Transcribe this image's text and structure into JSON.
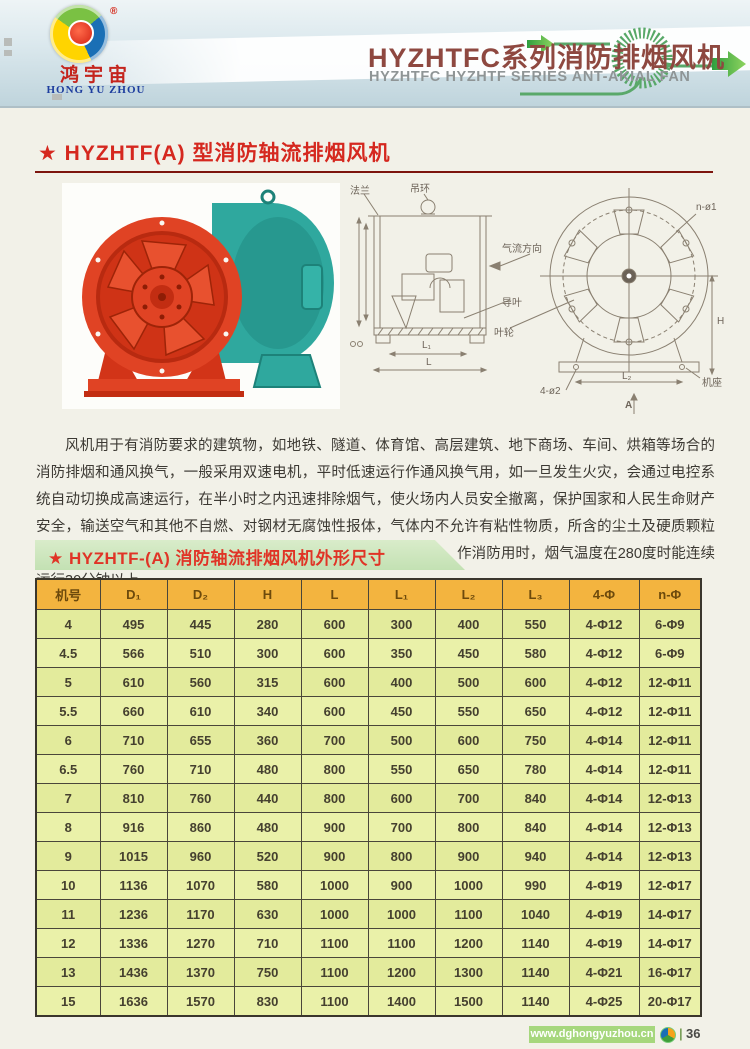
{
  "header": {
    "logo_cn": "鸿宇宙",
    "logo_en": "HONG YU ZHOU",
    "reg_mark": "®",
    "title": "HYZHTFC系列消防排烟风机",
    "subtitle": "HYZHTFC HYZHTF SERIES ANT-AKIAL FAN"
  },
  "section": {
    "title": "★ HYZHTF(A) 型消防轴流排烟风机"
  },
  "drawing": {
    "flange": "法兰",
    "lifting_ring": "吊环",
    "airflow": "气流方向",
    "guide_vane": "导叶",
    "impeller": "叶轮",
    "machine_base": "机座",
    "holes_base": "4-ø2",
    "holes_flange": "n-ø1",
    "dim_a": "A",
    "dim_h": "H",
    "dim_l": "L",
    "dim_l1": "L₁",
    "dim_l2": "L₂"
  },
  "description": "风机用于有消防要求的建筑物，如地铁、隧道、体育馆、高层建筑、地下商场、车间、烘箱等场合的消防排烟和通风换气，一般采用双速电机，平时低速运行作通风换气用，如一旦发生火灾，会通过电控系统自动切换成高速运行，在半小时之内迅速排除烟气，使火场内人员安全撤离，保护国家和人民生命财产安全，输送空气和其他不自燃、对钢材无腐蚀性报体，气体内不允许有粘性物质，所含的尘土及硬质颗粒物不大于150mg/m3，作通风换气用时进气气温度不得超过80度，作消防用时，烟气温度在280度时能连续运行30分钟以上。",
  "table": {
    "title": "★ HYZHTF-(A) 消防轴流排烟风机外形尺寸",
    "headers": [
      "机号",
      "D₁",
      "D₂",
      "H",
      "L",
      "L₁",
      "L₂",
      "L₃",
      "4-Φ",
      "n-Φ"
    ],
    "rows": [
      [
        "4",
        "495",
        "445",
        "280",
        "600",
        "300",
        "400",
        "550",
        "4-Φ12",
        "6-Φ9"
      ],
      [
        "4.5",
        "566",
        "510",
        "300",
        "600",
        "350",
        "450",
        "580",
        "4-Φ12",
        "6-Φ9"
      ],
      [
        "5",
        "610",
        "560",
        "315",
        "600",
        "400",
        "500",
        "600",
        "4-Φ12",
        "12-Φ11"
      ],
      [
        "5.5",
        "660",
        "610",
        "340",
        "600",
        "450",
        "550",
        "650",
        "4-Φ12",
        "12-Φ11"
      ],
      [
        "6",
        "710",
        "655",
        "360",
        "700",
        "500",
        "600",
        "750",
        "4-Φ14",
        "12-Φ11"
      ],
      [
        "6.5",
        "760",
        "710",
        "480",
        "800",
        "550",
        "650",
        "780",
        "4-Φ14",
        "12-Φ11"
      ],
      [
        "7",
        "810",
        "760",
        "440",
        "800",
        "600",
        "700",
        "840",
        "4-Φ14",
        "12-Φ13"
      ],
      [
        "8",
        "916",
        "860",
        "480",
        "900",
        "700",
        "800",
        "840",
        "4-Φ14",
        "12-Φ13"
      ],
      [
        "9",
        "1015",
        "960",
        "520",
        "900",
        "800",
        "900",
        "940",
        "4-Φ14",
        "12-Φ13"
      ],
      [
        "10",
        "1136",
        "1070",
        "580",
        "1000",
        "900",
        "1000",
        "990",
        "4-Φ19",
        "12-Φ17"
      ],
      [
        "11",
        "1236",
        "1170",
        "630",
        "1000",
        "1000",
        "1100",
        "1040",
        "4-Φ19",
        "14-Φ17"
      ],
      [
        "12",
        "1336",
        "1270",
        "710",
        "1100",
        "1100",
        "1200",
        "1140",
        "4-Φ19",
        "14-Φ17"
      ],
      [
        "13",
        "1436",
        "1370",
        "750",
        "1100",
        "1200",
        "1300",
        "1140",
        "4-Φ21",
        "16-Φ17"
      ],
      [
        "15",
        "1636",
        "1570",
        "830",
        "1100",
        "1400",
        "1500",
        "1140",
        "4-Φ25",
        "20-Φ17"
      ]
    ]
  },
  "footer": {
    "website": "www.dghongyuzhou.cn",
    "divider": "|",
    "page_number": "36"
  },
  "colors": {
    "accent_red": "#d5281f",
    "table_header_orange": "#f3b43f",
    "row_yellow_green": "#e3eb9c",
    "banner_green": "#cde6bc",
    "header_blue": "#dce9ee",
    "fan_red": "#e04324",
    "fan_teal": "#2fa89e"
  }
}
